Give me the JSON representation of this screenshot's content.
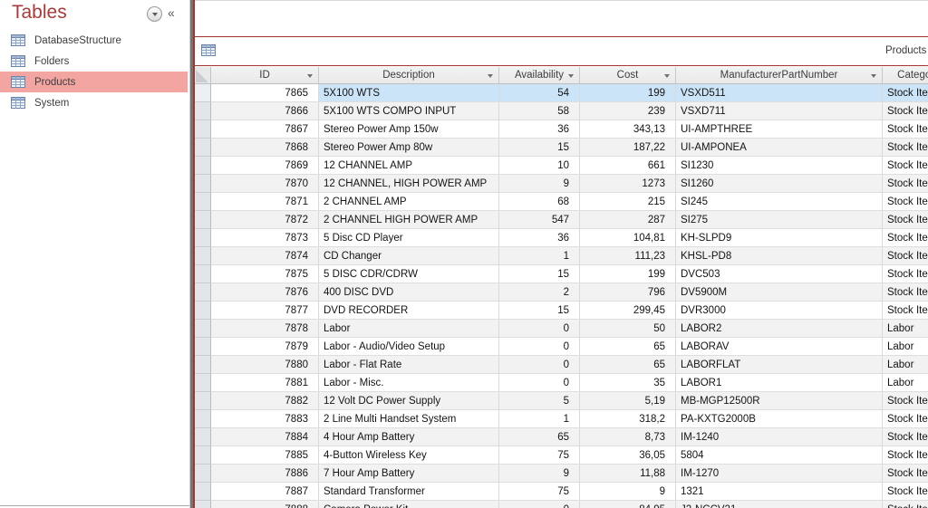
{
  "colors": {
    "accent_red": "#A33531",
    "nav_title_red": "#A93A38",
    "nav_selected_pink": "#F2A5A1",
    "row_selection_blue": "#CCE4F7",
    "alt_row_gray": "#F2F2F2"
  },
  "nav": {
    "title": "Tables",
    "menu_button_icon": "chevron-down-icon",
    "collapse_glyph": "«",
    "items": [
      {
        "label": "DatabaseStructure",
        "icon": "table-icon",
        "selected": false
      },
      {
        "label": "Folders",
        "icon": "table-icon",
        "selected": false
      },
      {
        "label": "Products",
        "icon": "table-icon",
        "selected": true
      },
      {
        "label": "System",
        "icon": "table-icon",
        "selected": false
      }
    ]
  },
  "tab": {
    "icon": "table-icon",
    "title": "Products"
  },
  "table": {
    "columns": [
      "ID",
      "Description",
      "Availability",
      "Cost",
      "ManufacturerPartNumber",
      "Category"
    ],
    "selected_row_index": 0,
    "active_cell": {
      "row": 0,
      "column": "ID"
    },
    "rows": [
      [
        "7865",
        "5X100 WTS",
        "54",
        "199",
        "VSXD511",
        "Stock Item"
      ],
      [
        "7866",
        "5X100 WTS COMPO INPUT",
        "58",
        "239",
        "VSXD711",
        "Stock Item"
      ],
      [
        "7867",
        "Stereo Power Amp 150w",
        "36",
        "343,13",
        "UI-AMPTHREE",
        "Stock Item"
      ],
      [
        "7868",
        "Stereo Power Amp 80w",
        "15",
        "187,22",
        "UI-AMPONEA",
        "Stock Item"
      ],
      [
        "7869",
        "12 CHANNEL AMP",
        "10",
        "661",
        "SI1230",
        "Stock Item"
      ],
      [
        "7870",
        "12 CHANNEL, HIGH POWER AMP",
        "9",
        "1273",
        "SI1260",
        "Stock Item"
      ],
      [
        "7871",
        "2 CHANNEL AMP",
        "68",
        "215",
        "SI245",
        "Stock Item"
      ],
      [
        "7872",
        "2 CHANNEL HIGH POWER AMP",
        "547",
        "287",
        "SI275",
        "Stock Item"
      ],
      [
        "7873",
        "5 Disc CD Player",
        "36",
        "104,81",
        "KH-SLPD9",
        "Stock Item"
      ],
      [
        "7874",
        "CD Changer",
        "1",
        "111,23",
        "KHSL-PD8",
        "Stock Item"
      ],
      [
        "7875",
        "5 DISC CDR/CDRW",
        "15",
        "199",
        "DVC503",
        "Stock Item"
      ],
      [
        "7876",
        "400 DISC DVD",
        "2",
        "796",
        "DV5900M",
        "Stock Item"
      ],
      [
        "7877",
        "DVD RECORDER",
        "15",
        "299,45",
        "DVR3000",
        "Stock Item"
      ],
      [
        "7878",
        "Labor",
        "0",
        "50",
        "LABOR2",
        "Labor"
      ],
      [
        "7879",
        "Labor - Audio/Video Setup",
        "0",
        "65",
        "LABORAV",
        "Labor"
      ],
      [
        "7880",
        "Labor - Flat Rate",
        "0",
        "65",
        "LABORFLAT",
        "Labor"
      ],
      [
        "7881",
        "Labor - Misc.",
        "0",
        "35",
        "LABOR1",
        "Labor"
      ],
      [
        "7882",
        "12 Volt DC Power Supply",
        "5",
        "5,19",
        "MB-MGP12500R",
        "Stock Item"
      ],
      [
        "7883",
        "2 Line Multi Handset System",
        "1",
        "318,2",
        "PA-KXTG2000B",
        "Stock Item"
      ],
      [
        "7884",
        "4 Hour Amp Battery",
        "65",
        "8,73",
        "IM-1240",
        "Stock Item"
      ],
      [
        "7885",
        "4-Button Wireless Key",
        "75",
        "36,05",
        "5804",
        "Stock Item"
      ],
      [
        "7886",
        "7 Hour Amp Battery",
        "9",
        "11,88",
        "IM-1270",
        "Stock Item"
      ],
      [
        "7887",
        "Standard Transformer",
        "75",
        "9",
        "1321",
        "Stock Item"
      ],
      [
        "7888",
        "Camera Power Kit",
        "0",
        "84,95",
        "J2-NCCV21",
        "Stock Item"
      ]
    ]
  }
}
